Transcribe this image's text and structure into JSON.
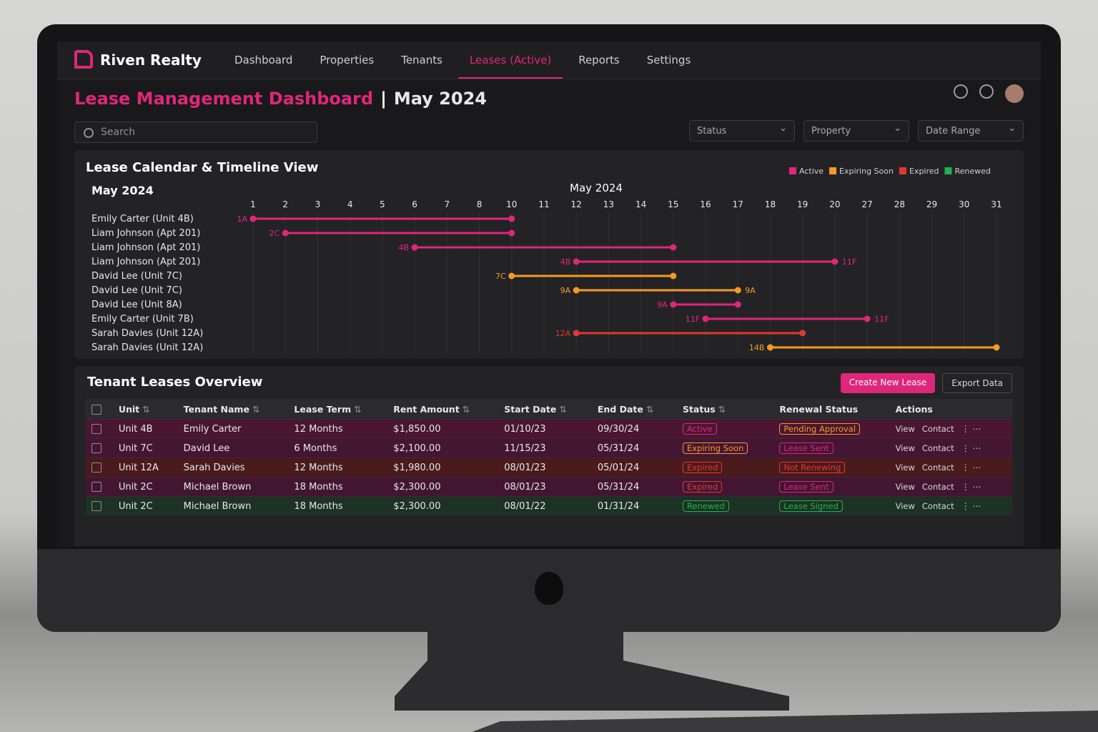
{
  "brand": "Riven Realty",
  "nav": [
    "Dashboard",
    "Properties",
    "Tenants",
    "Leases (Active)",
    "Reports",
    "Settings"
  ],
  "title": "Lease Management Dashboard",
  "title_month": "May 2024",
  "search_placeholder": "Search",
  "filters": [
    "Status",
    "Property",
    "Date Range"
  ],
  "timeline": {
    "title": "Lease Calendar & Timeline View",
    "month_label": "May 2024",
    "header": "May 2024",
    "legend": [
      {
        "name": "Active",
        "color": "#e0267a"
      },
      {
        "name": "Expiring Soon",
        "color": "#f59a23"
      },
      {
        "name": "Expired",
        "color": "#e2382f"
      },
      {
        "name": "Renewed",
        "color": "#22b04b"
      }
    ],
    "days": [
      1,
      2,
      3,
      4,
      5,
      6,
      7,
      8,
      10,
      11,
      12,
      13,
      14,
      15,
      16,
      17,
      18,
      19,
      20,
      27,
      28,
      29,
      30,
      31
    ],
    "rows": [
      "Emily Carter (Unit 4B)",
      "Liam Johnson (Apt 201)",
      "Liam Johnson (Apt 201)",
      "Liam Johnson (Apt 201)",
      "David Lee (Unit 7C)",
      "David Lee (Unit 7C)",
      "David Lee (Unit 8A)",
      "Emily Carter (Unit 7B)",
      "Sarah Davies (Unit 12A)",
      "Sarah Davies (Unit 12A)"
    ],
    "bars": [
      {
        "start": 1,
        "end": 10,
        "start_label": "1A",
        "color": "#e0267a"
      },
      {
        "start": 2,
        "end": 10,
        "start_label": "2C",
        "color": "#e0267a"
      },
      {
        "start": 6,
        "end": 15,
        "start_label": "4B",
        "color": "#e0267a"
      },
      {
        "start": 12,
        "end": 20,
        "start_label": "4B",
        "end_label": "11F",
        "color": "#e0267a"
      },
      {
        "start": 10,
        "end": 15,
        "start_label": "7C",
        "color": "#f59a23"
      },
      {
        "start": 12,
        "end": 17,
        "start_label": "9A",
        "end_label": "9A",
        "color": "#f59a23"
      },
      {
        "start": 15,
        "end": 17,
        "start_label": "9A",
        "color": "#e0267a"
      },
      {
        "start": 16,
        "end": 27,
        "start_label": "11F",
        "end_label": "11F",
        "color": "#e0267a"
      },
      {
        "start": 12,
        "end": 19,
        "start_label": "12A",
        "color": "#e2382f"
      },
      {
        "start": 18,
        "end": 31,
        "start_label": "14B",
        "color": "#f59a23"
      }
    ]
  },
  "table": {
    "title": "Tenant Leases Overview",
    "buttons": [
      "Create New Lease",
      "Export Data"
    ],
    "columns": [
      "Unit",
      "Tenant Name",
      "Lease Term",
      "Rent Amount",
      "Start Date",
      "End Date",
      "Status",
      "Renewal Status",
      "Actions"
    ],
    "actions": [
      "View",
      "Contact"
    ],
    "rows": [
      {
        "unit": "Unit 4B",
        "tenant": "Emily Carter",
        "term": "12 Months",
        "rent": "$1,850.00",
        "start": "01/10/23",
        "end": "09/30/24",
        "status": "Active",
        "status_color": "#e0267a",
        "renewal": "Pending Approval",
        "renewal_color": "#f59a23",
        "color": "#4a1632"
      },
      {
        "unit": "Unit 7C",
        "tenant": "David Lee",
        "term": "6 Months",
        "rent": "$2,100.00",
        "start": "11/15/23",
        "end": "05/31/24",
        "status": "Expiring Soon",
        "status_color": "#f59a23",
        "renewal": "Lease Sent",
        "renewal_color": "#e0267a",
        "color": "#451634"
      },
      {
        "unit": "Unit 12A",
        "tenant": "Sarah Davies",
        "term": "12 Months",
        "rent": "$1,980.00",
        "start": "08/01/23",
        "end": "05/01/24",
        "status": "Expired",
        "status_color": "#e2382f",
        "renewal": "Not Renewing",
        "renewal_color": "#e2382f",
        "color": "#4a1a1c"
      },
      {
        "unit": "Unit 2C",
        "tenant": "Michael Brown",
        "term": "18 Months",
        "rent": "$2,300.00",
        "start": "08/01/23",
        "end": "05/31/24",
        "status": "Expired",
        "status_color": "#e2382f",
        "renewal": "Lease Sent",
        "renewal_color": "#e0267a",
        "color": "#421632"
      },
      {
        "unit": "Unit 2C",
        "tenant": "Michael Brown",
        "term": "18 Months",
        "rent": "$2,300.00",
        "start": "08/01/22",
        "end": "01/31/24",
        "status": "Renewed",
        "status_color": "#22b04b",
        "renewal": "Lease Signed",
        "renewal_color": "#22b04b",
        "color": "#1c3224"
      }
    ]
  }
}
